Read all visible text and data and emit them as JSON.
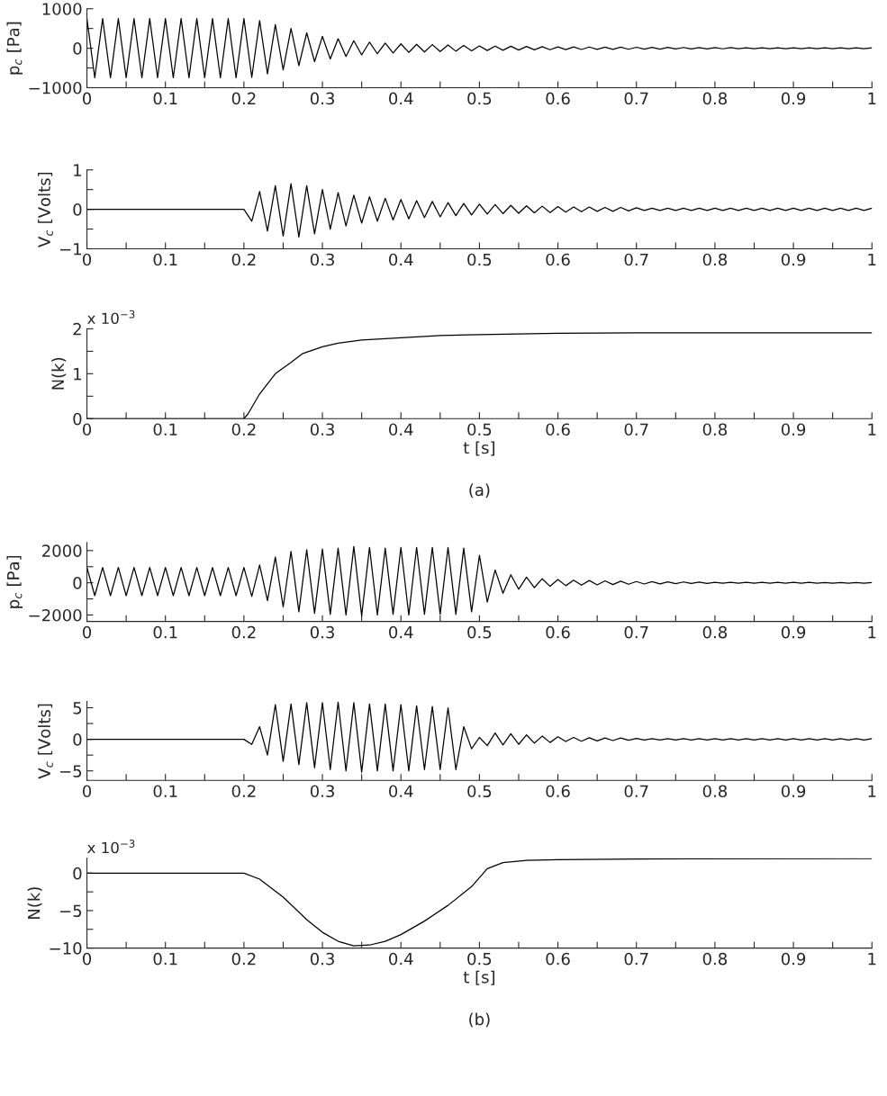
{
  "chart_data": [
    {
      "type": "line",
      "ylabel": "p$_{c}$ [Pa]",
      "x": [
        0,
        0.01,
        0.02,
        0.03,
        0.04,
        0.05,
        0.06,
        0.07,
        0.08,
        0.09,
        0.1,
        0.11,
        0.12,
        0.13,
        0.14,
        0.15,
        0.16,
        0.17,
        0.18,
        0.19,
        0.2,
        0.21,
        0.22,
        0.23,
        0.24,
        0.25,
        0.26,
        0.27,
        0.28,
        0.29,
        0.3,
        0.31,
        0.32,
        0.33,
        0.34,
        0.35,
        0.36,
        0.37,
        0.38,
        0.39,
        0.4,
        0.41,
        0.42,
        0.43,
        0.44,
        0.45,
        0.46,
        0.47,
        0.48,
        0.49,
        0.5,
        0.51,
        0.52,
        0.53,
        0.54,
        0.55,
        0.56,
        0.57,
        0.58,
        0.59,
        0.6,
        0.61,
        0.62,
        0.63,
        0.64,
        0.65,
        0.66,
        0.67,
        0.68,
        0.69,
        0.7,
        0.71,
        0.72,
        0.73,
        0.74,
        0.75,
        0.76,
        0.77,
        0.78,
        0.79,
        0.8,
        0.81,
        0.82,
        0.83,
        0.84,
        0.85,
        0.86,
        0.87,
        0.88,
        0.89,
        0.9,
        0.91,
        0.92,
        0.93,
        0.94,
        0.95,
        0.96,
        0.97,
        0.98,
        0.99,
        1
      ],
      "series": [
        {
          "color": "#000000",
          "values": [
            750,
            -750,
            750,
            -750,
            750,
            -750,
            750,
            -750,
            750,
            -750,
            750,
            -750,
            750,
            -750,
            750,
            -750,
            750,
            -750,
            750,
            -750,
            750,
            -740,
            700,
            -650,
            600,
            -550,
            500,
            -440,
            390,
            -340,
            300,
            -270,
            240,
            -210,
            190,
            -170,
            155,
            -140,
            130,
            -120,
            110,
            -105,
            100,
            -95,
            90,
            -85,
            80,
            -75,
            70,
            -65,
            60,
            -58,
            55,
            -52,
            50,
            -47,
            45,
            -42,
            40,
            -38,
            35,
            -34,
            33,
            -32,
            31,
            -30,
            29,
            -28,
            27,
            -26,
            25,
            -24,
            23,
            -22,
            21,
            -20,
            19,
            -18,
            17,
            -16,
            15,
            -15,
            14,
            -14,
            13,
            -13,
            12,
            -12,
            12,
            -11,
            11,
            -11,
            10,
            -10,
            10,
            -10,
            10,
            -10,
            10,
            -10,
            10
          ]
        }
      ],
      "xlim": [
        0,
        1
      ],
      "xticks": [
        0,
        {
          "value": 0.05,
          "label": null
        },
        0.1,
        {
          "value": 0.15,
          "label": null
        },
        0.2,
        {
          "value": 0.25,
          "label": null
        },
        0.3,
        {
          "value": 0.35,
          "label": null
        },
        0.4,
        {
          "value": 0.45,
          "label": null
        },
        0.5,
        {
          "value": 0.55,
          "label": null
        },
        0.6,
        {
          "value": 0.65,
          "label": null
        },
        0.7,
        {
          "value": 0.75,
          "label": null
        },
        0.8,
        {
          "value": 0.85,
          "label": null
        },
        0.9,
        {
          "value": 0.95,
          "label": null
        },
        1
      ],
      "ylim": [
        -1000,
        1000
      ],
      "yticks": [
        {
          "value": -1000,
          "label": "−1000"
        },
        {
          "value": -500,
          "label": null
        },
        0,
        {
          "value": 500,
          "label": null
        },
        1000
      ],
      "grid": false,
      "marker": "none",
      "line_style": "solid"
    },
    {
      "type": "line",
      "ylabel": "V$_{c}$ [Volts]",
      "x": [
        0,
        0.01,
        0.02,
        0.03,
        0.04,
        0.05,
        0.06,
        0.07,
        0.08,
        0.09,
        0.1,
        0.11,
        0.12,
        0.13,
        0.14,
        0.15,
        0.16,
        0.17,
        0.18,
        0.19,
        0.2,
        0.21,
        0.22,
        0.23,
        0.24,
        0.25,
        0.26,
        0.27,
        0.28,
        0.29,
        0.3,
        0.31,
        0.32,
        0.33,
        0.34,
        0.35,
        0.36,
        0.37,
        0.38,
        0.39,
        0.4,
        0.41,
        0.42,
        0.43,
        0.44,
        0.45,
        0.46,
        0.47,
        0.48,
        0.49,
        0.5,
        0.51,
        0.52,
        0.53,
        0.54,
        0.55,
        0.56,
        0.57,
        0.58,
        0.59,
        0.6,
        0.61,
        0.62,
        0.63,
        0.64,
        0.65,
        0.66,
        0.67,
        0.68,
        0.69,
        0.7,
        0.71,
        0.72,
        0.73,
        0.74,
        0.75,
        0.76,
        0.77,
        0.78,
        0.79,
        0.8,
        0.81,
        0.82,
        0.83,
        0.84,
        0.85,
        0.86,
        0.87,
        0.88,
        0.89,
        0.9,
        0.91,
        0.92,
        0.93,
        0.94,
        0.95,
        0.96,
        0.97,
        0.98,
        0.99,
        1
      ],
      "series": [
        {
          "color": "#000000",
          "values": [
            0,
            0,
            0,
            0,
            0,
            0,
            0,
            0,
            0,
            0,
            0,
            0,
            0,
            0,
            0,
            0,
            0,
            0,
            0,
            0,
            0,
            -0.3,
            0.45,
            -0.55,
            0.6,
            -0.68,
            0.65,
            -0.7,
            0.6,
            -0.62,
            0.5,
            -0.5,
            0.42,
            -0.42,
            0.36,
            -0.35,
            0.32,
            -0.3,
            0.28,
            -0.27,
            0.25,
            -0.24,
            0.22,
            -0.21,
            0.2,
            -0.19,
            0.17,
            -0.16,
            0.15,
            -0.14,
            0.13,
            -0.12,
            0.12,
            -0.11,
            0.1,
            -0.1,
            0.09,
            -0.09,
            0.08,
            -0.08,
            0.07,
            -0.07,
            0.06,
            -0.06,
            0.06,
            -0.05,
            0.05,
            -0.05,
            0.05,
            -0.04,
            0.04,
            -0.03,
            0.03,
            -0.03,
            0.03,
            -0.03,
            0.03,
            -0.03,
            0.03,
            -0.03,
            0.03,
            -0.03,
            0.03,
            -0.03,
            0.03,
            -0.03,
            0.03,
            -0.03,
            0.03,
            -0.03,
            0.03,
            -0.03,
            0.03,
            -0.03,
            0.03,
            -0.03,
            0.03,
            -0.03,
            0.03,
            -0.03,
            0.03
          ]
        }
      ],
      "xlim": [
        0,
        1
      ],
      "xticks": [
        0,
        {
          "value": 0.05,
          "label": null
        },
        0.1,
        {
          "value": 0.15,
          "label": null
        },
        0.2,
        {
          "value": 0.25,
          "label": null
        },
        0.3,
        {
          "value": 0.35,
          "label": null
        },
        0.4,
        {
          "value": 0.45,
          "label": null
        },
        0.5,
        {
          "value": 0.55,
          "label": null
        },
        0.6,
        {
          "value": 0.65,
          "label": null
        },
        0.7,
        {
          "value": 0.75,
          "label": null
        },
        0.8,
        {
          "value": 0.85,
          "label": null
        },
        0.9,
        {
          "value": 0.95,
          "label": null
        },
        1
      ],
      "ylim": [
        -1,
        1
      ],
      "yticks": [
        {
          "value": -1,
          "label": "−1"
        },
        {
          "value": -0.5,
          "label": null
        },
        0,
        {
          "value": 0.5,
          "label": null
        },
        1
      ],
      "grid": false,
      "marker": "none",
      "line_style": "solid"
    },
    {
      "type": "line",
      "ylabel": "N(k)",
      "xlabel": "t [s]",
      "annotations": [
        "x 10$^{−3}$",
        "(a)"
      ],
      "series": [
        {
          "color": "#000000",
          "x": [
            0,
            0.2,
            0.205,
            0.22,
            0.24,
            0.26,
            0.275,
            0.3,
            0.32,
            0.35,
            0.4,
            0.45,
            0.5,
            0.6,
            0.7,
            1.0
          ],
          "values": [
            0,
            0,
            0.1,
            0.55,
            1.0,
            1.25,
            1.45,
            1.6,
            1.68,
            1.75,
            1.8,
            1.85,
            1.87,
            1.9,
            1.91,
            1.91
          ]
        }
      ],
      "xlim": [
        0,
        1
      ],
      "xticks": [
        0,
        {
          "value": 0.05,
          "label": null
        },
        0.1,
        {
          "value": 0.15,
          "label": null
        },
        0.2,
        {
          "value": 0.25,
          "label": null
        },
        0.3,
        {
          "value": 0.35,
          "label": null
        },
        0.4,
        {
          "value": 0.45,
          "label": null
        },
        0.5,
        {
          "value": 0.55,
          "label": null
        },
        0.6,
        {
          "value": 0.65,
          "label": null
        },
        0.7,
        {
          "value": 0.75,
          "label": null
        },
        0.8,
        {
          "value": 0.85,
          "label": null
        },
        0.9,
        {
          "value": 0.95,
          "label": null
        },
        1
      ],
      "ylim": [
        0,
        2
      ],
      "yticks": [
        0,
        {
          "value": 0.5,
          "label": null
        },
        1,
        {
          "value": 1.5,
          "label": null
        },
        2
      ],
      "grid": false,
      "marker": "none",
      "line_style": "solid"
    },
    {
      "type": "line",
      "ylabel": "p$_{c}$ [Pa]",
      "x": [
        0,
        0.01,
        0.02,
        0.03,
        0.04,
        0.05,
        0.06,
        0.07,
        0.08,
        0.09,
        0.1,
        0.11,
        0.12,
        0.13,
        0.14,
        0.15,
        0.16,
        0.17,
        0.18,
        0.19,
        0.2,
        0.21,
        0.22,
        0.23,
        0.24,
        0.25,
        0.26,
        0.27,
        0.28,
        0.29,
        0.3,
        0.31,
        0.32,
        0.33,
        0.34,
        0.35,
        0.36,
        0.37,
        0.38,
        0.39,
        0.4,
        0.41,
        0.42,
        0.43,
        0.44,
        0.45,
        0.46,
        0.47,
        0.48,
        0.49,
        0.5,
        0.51,
        0.52,
        0.53,
        0.54,
        0.55,
        0.56,
        0.57,
        0.58,
        0.59,
        0.6,
        0.61,
        0.62,
        0.63,
        0.64,
        0.65,
        0.66,
        0.67,
        0.68,
        0.69,
        0.7,
        0.71,
        0.72,
        0.73,
        0.74,
        0.75,
        0.76,
        0.77,
        0.78,
        0.79,
        0.8,
        0.81,
        0.82,
        0.83,
        0.84,
        0.85,
        0.86,
        0.87,
        0.88,
        0.89,
        0.9,
        0.91,
        0.92,
        0.93,
        0.94,
        0.95,
        0.96,
        0.97,
        0.98,
        0.99,
        1
      ],
      "series": [
        {
          "color": "#000000",
          "values": [
            950,
            -800,
            950,
            -800,
            950,
            -800,
            950,
            -800,
            950,
            -800,
            950,
            -800,
            950,
            -800,
            950,
            -800,
            950,
            -800,
            950,
            -800,
            950,
            -850,
            1100,
            -1100,
            1600,
            -1500,
            1950,
            -1800,
            2050,
            -1900,
            2100,
            -1950,
            2150,
            -2000,
            2250,
            -2050,
            2200,
            -2000,
            2150,
            -1950,
            2200,
            -2000,
            2200,
            -1950,
            2200,
            -1950,
            2200,
            -1950,
            2150,
            -1800,
            1700,
            -1200,
            800,
            -650,
            500,
            -400,
            350,
            -300,
            250,
            -220,
            200,
            -180,
            160,
            -150,
            140,
            -130,
            120,
            -110,
            100,
            -90,
            80,
            -75,
            70,
            -65,
            60,
            -55,
            50,
            -45,
            40,
            -40,
            35,
            -30,
            30,
            -28,
            28,
            -26,
            26,
            -25,
            25,
            -24,
            24,
            -23,
            23,
            -22,
            22,
            -21,
            21,
            -20,
            20,
            -20,
            20
          ]
        }
      ],
      "xlim": [
        0,
        1
      ],
      "xticks": [
        0,
        {
          "value": 0.05,
          "label": null
        },
        0.1,
        {
          "value": 0.15,
          "label": null
        },
        0.2,
        {
          "value": 0.25,
          "label": null
        },
        0.3,
        {
          "value": 0.35,
          "label": null
        },
        0.4,
        {
          "value": 0.45,
          "label": null
        },
        0.5,
        {
          "value": 0.55,
          "label": null
        },
        0.6,
        {
          "value": 0.65,
          "label": null
        },
        0.7,
        {
          "value": 0.75,
          "label": null
        },
        0.8,
        {
          "value": 0.85,
          "label": null
        },
        0.9,
        {
          "value": 0.95,
          "label": null
        },
        1
      ],
      "ylim": [
        -2400,
        2500
      ],
      "yticks": [
        {
          "value": -2000,
          "label": "−2000"
        },
        {
          "value": -1000,
          "label": null
        },
        0,
        {
          "value": 1000,
          "label": null
        },
        2000
      ],
      "grid": false,
      "marker": "none",
      "line_style": "solid"
    },
    {
      "type": "line",
      "ylabel": "V$_{c}$ [Volts]",
      "x": [
        0,
        0.01,
        0.02,
        0.03,
        0.04,
        0.05,
        0.06,
        0.07,
        0.08,
        0.09,
        0.1,
        0.11,
        0.12,
        0.13,
        0.14,
        0.15,
        0.16,
        0.17,
        0.18,
        0.19,
        0.2,
        0.21,
        0.22,
        0.23,
        0.24,
        0.25,
        0.26,
        0.27,
        0.28,
        0.29,
        0.3,
        0.31,
        0.32,
        0.33,
        0.34,
        0.35,
        0.36,
        0.37,
        0.38,
        0.39,
        0.4,
        0.41,
        0.42,
        0.43,
        0.44,
        0.45,
        0.46,
        0.47,
        0.48,
        0.49,
        0.5,
        0.51,
        0.52,
        0.53,
        0.54,
        0.55,
        0.56,
        0.57,
        0.58,
        0.59,
        0.6,
        0.61,
        0.62,
        0.63,
        0.64,
        0.65,
        0.66,
        0.67,
        0.68,
        0.69,
        0.7,
        0.71,
        0.72,
        0.73,
        0.74,
        0.75,
        0.76,
        0.77,
        0.78,
        0.79,
        0.8,
        0.81,
        0.82,
        0.83,
        0.84,
        0.85,
        0.86,
        0.87,
        0.88,
        0.89,
        0.9,
        0.91,
        0.92,
        0.93,
        0.94,
        0.95,
        0.96,
        0.97,
        0.98,
        0.99,
        1
      ],
      "series": [
        {
          "color": "#000000",
          "values": [
            0,
            0,
            0,
            0,
            0,
            0,
            0,
            0,
            0,
            0,
            0,
            0,
            0,
            0,
            0,
            0,
            0,
            0,
            0,
            0,
            0,
            -0.8,
            2,
            -2.5,
            5.5,
            -3.5,
            5.6,
            -4,
            5.8,
            -4.5,
            5.8,
            -4.8,
            5.9,
            -5,
            5.8,
            -5.2,
            5.6,
            -5,
            5.6,
            -5,
            5.5,
            -5,
            5.3,
            -4.8,
            5.2,
            -4.8,
            5,
            -4.8,
            2,
            -1.5,
            0.3,
            -1,
            1,
            -0.9,
            0.9,
            -0.8,
            0.7,
            -0.6,
            0.5,
            -0.5,
            0.4,
            -0.35,
            0.3,
            -0.3,
            0.25,
            -0.25,
            0.2,
            -0.2,
            0.2,
            -0.15,
            0.15,
            -0.1,
            0.1,
            -0.1,
            0.1,
            -0.1,
            0.1,
            -0.1,
            0.1,
            -0.1,
            0.1,
            -0.1,
            0.1,
            -0.1,
            0.1,
            -0.1,
            0.1,
            -0.1,
            0.1,
            -0.1,
            0.1,
            -0.1,
            0.1,
            -0.1,
            0.1,
            -0.1,
            0.1,
            -0.1,
            0.1,
            -0.1,
            0.1
          ]
        }
      ],
      "xlim": [
        0,
        1
      ],
      "xticks": [
        0,
        {
          "value": 0.05,
          "label": null
        },
        0.1,
        {
          "value": 0.15,
          "label": null
        },
        0.2,
        {
          "value": 0.25,
          "label": null
        },
        0.3,
        {
          "value": 0.35,
          "label": null
        },
        0.4,
        {
          "value": 0.45,
          "label": null
        },
        0.5,
        {
          "value": 0.55,
          "label": null
        },
        0.6,
        {
          "value": 0.65,
          "label": null
        },
        0.7,
        {
          "value": 0.75,
          "label": null
        },
        0.8,
        {
          "value": 0.85,
          "label": null
        },
        0.9,
        {
          "value": 0.95,
          "label": null
        },
        1
      ],
      "ylim": [
        -6.5,
        6
      ],
      "yticks": [
        {
          "value": -5,
          "label": "−5"
        },
        {
          "value": -2.5,
          "label": null
        },
        0,
        {
          "value": 2.5,
          "label": null
        },
        5
      ],
      "grid": false,
      "marker": "none",
      "line_style": "solid"
    },
    {
      "type": "line",
      "ylabel": "N(k)",
      "xlabel": "t [s]",
      "annotations": [
        "x 10$^{−3}$",
        "(b)"
      ],
      "series": [
        {
          "color": "#000000",
          "x": [
            0,
            0.2,
            0.22,
            0.25,
            0.28,
            0.3,
            0.32,
            0.34,
            0.36,
            0.38,
            0.4,
            0.43,
            0.46,
            0.49,
            0.51,
            0.53,
            0.56,
            0.6,
            0.7,
            1.0
          ],
          "values": [
            0,
            0,
            -0.8,
            -3.2,
            -6.2,
            -7.9,
            -9.1,
            -9.7,
            -9.6,
            -9.1,
            -8.2,
            -6.4,
            -4.3,
            -1.8,
            0.6,
            1.4,
            1.7,
            1.8,
            1.9,
            1.95
          ]
        }
      ],
      "xlim": [
        0,
        1
      ],
      "xticks": [
        0,
        {
          "value": 0.05,
          "label": null
        },
        0.1,
        {
          "value": 0.15,
          "label": null
        },
        0.2,
        {
          "value": 0.25,
          "label": null
        },
        0.3,
        {
          "value": 0.35,
          "label": null
        },
        0.4,
        {
          "value": 0.45,
          "label": null
        },
        0.5,
        {
          "value": 0.55,
          "label": null
        },
        0.6,
        {
          "value": 0.65,
          "label": null
        },
        0.7,
        {
          "value": 0.75,
          "label": null
        },
        0.8,
        {
          "value": 0.85,
          "label": null
        },
        0.9,
        {
          "value": 0.95,
          "label": null
        },
        1
      ],
      "ylim": [
        -10,
        2
      ],
      "yticks": [
        {
          "value": -10,
          "label": "−10"
        },
        {
          "value": -7.5,
          "label": null
        },
        {
          "value": -5,
          "label": "−5"
        },
        {
          "value": -2.5,
          "label": null
        },
        0
      ],
      "grid": false,
      "marker": "none",
      "line_style": "solid"
    }
  ]
}
